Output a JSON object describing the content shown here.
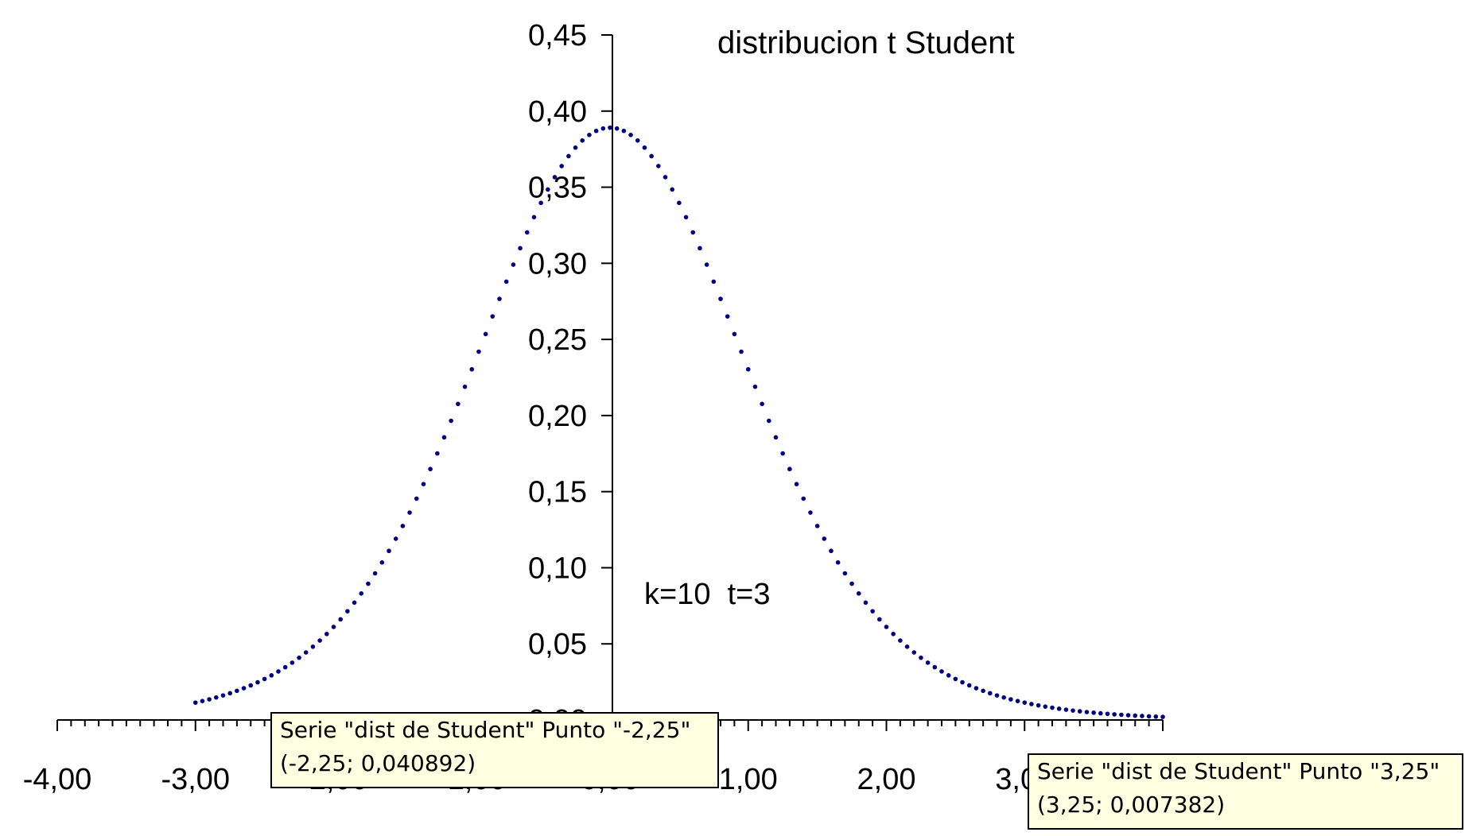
{
  "chart_data": {
    "type": "scatter",
    "title": "distribucion t Student",
    "annotation": "k=10  t=3",
    "series": [
      {
        "name": "dist de Student",
        "color": "#000080",
        "k": 10,
        "x_from": -3.0,
        "x_to": 4.0,
        "x_step": 0.05
      }
    ],
    "xlim": [
      -4.0,
      4.0
    ],
    "ylim": [
      0.0,
      0.45
    ],
    "x_ticks": [
      "-4,00",
      "-3,00",
      "-2,00",
      "-1,00",
      "0,00",
      "1,00",
      "2,00",
      "3,00",
      "4,00"
    ],
    "y_ticks": [
      "0,00",
      "0,05",
      "0,10",
      "0,15",
      "0,20",
      "0,25",
      "0,30",
      "0,35",
      "0,40",
      "0,45"
    ],
    "grid": false
  },
  "tooltips": [
    {
      "line1": "Serie \"dist de Student\" Punto \"-2,25\"",
      "line2": "(-2,25; 0,040892)"
    },
    {
      "line1": "Serie \"dist de Student\" Punto \"3,25\"",
      "line2": "(3,25; 0,007382)"
    }
  ]
}
